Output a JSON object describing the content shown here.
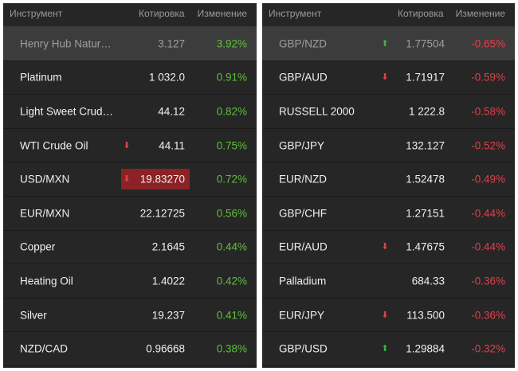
{
  "left": {
    "header": {
      "instrument": "Инструмент",
      "quote": "Котировка",
      "change": "Изменение"
    },
    "rows": [
      {
        "name": "Henry Hub Natur…",
        "price": "3.127",
        "change": "3.92%",
        "direction": "pos",
        "arrow": "",
        "highlight": true
      },
      {
        "name": "Platinum",
        "price": "1 032.0",
        "change": "0.91%",
        "direction": "pos",
        "arrow": ""
      },
      {
        "name": "Light Sweet Crud…",
        "price": "44.12",
        "change": "0.82%",
        "direction": "pos",
        "arrow": ""
      },
      {
        "name": "WTI Crude Oil",
        "price": "44.11",
        "change": "0.75%",
        "direction": "pos",
        "arrow": "down"
      },
      {
        "name": "USD/MXN",
        "price": "19.83270",
        "change": "0.72%",
        "direction": "pos",
        "arrow": "down",
        "flash": true
      },
      {
        "name": "EUR/MXN",
        "price": "22.12725",
        "change": "0.56%",
        "direction": "pos",
        "arrow": ""
      },
      {
        "name": "Copper",
        "price": "2.1645",
        "change": "0.44%",
        "direction": "pos",
        "arrow": ""
      },
      {
        "name": "Heating Oil",
        "price": "1.4022",
        "change": "0.42%",
        "direction": "pos",
        "arrow": ""
      },
      {
        "name": "Silver",
        "price": "19.237",
        "change": "0.41%",
        "direction": "pos",
        "arrow": ""
      },
      {
        "name": "NZD/CAD",
        "price": "0.96668",
        "change": "0.38%",
        "direction": "pos",
        "arrow": ""
      }
    ]
  },
  "right": {
    "header": {
      "instrument": "Инструмент",
      "quote": "Котировка",
      "change": "Изменение"
    },
    "rows": [
      {
        "name": "GBP/NZD",
        "price": "1.77504",
        "change": "-0.65%",
        "direction": "neg",
        "arrow": "up",
        "highlight": true
      },
      {
        "name": "GBP/AUD",
        "price": "1.71917",
        "change": "-0.59%",
        "direction": "neg",
        "arrow": "down"
      },
      {
        "name": "RUSSELL 2000",
        "price": "1 222.8",
        "change": "-0.58%",
        "direction": "neg",
        "arrow": ""
      },
      {
        "name": "GBP/JPY",
        "price": "132.127",
        "change": "-0.52%",
        "direction": "neg",
        "arrow": ""
      },
      {
        "name": "EUR/NZD",
        "price": "1.52478",
        "change": "-0.49%",
        "direction": "neg",
        "arrow": ""
      },
      {
        "name": "GBP/CHF",
        "price": "1.27151",
        "change": "-0.44%",
        "direction": "neg",
        "arrow": ""
      },
      {
        "name": "EUR/AUD",
        "price": "1.47675",
        "change": "-0.44%",
        "direction": "neg",
        "arrow": "down"
      },
      {
        "name": "Palladium",
        "price": "684.33",
        "change": "-0.36%",
        "direction": "neg",
        "arrow": ""
      },
      {
        "name": "EUR/JPY",
        "price": "113.500",
        "change": "-0.36%",
        "direction": "neg",
        "arrow": "down"
      },
      {
        "name": "GBP/USD",
        "price": "1.29884",
        "change": "-0.32%",
        "direction": "neg",
        "arrow": "up"
      }
    ]
  },
  "icons": {
    "up": "arrow-up-icon",
    "down": "arrow-down-icon"
  },
  "colors": {
    "positive": "#5fbf3a",
    "negative": "#e0404a",
    "up_arrow": "#3cb043",
    "flash_bg": "#8b2226"
  }
}
